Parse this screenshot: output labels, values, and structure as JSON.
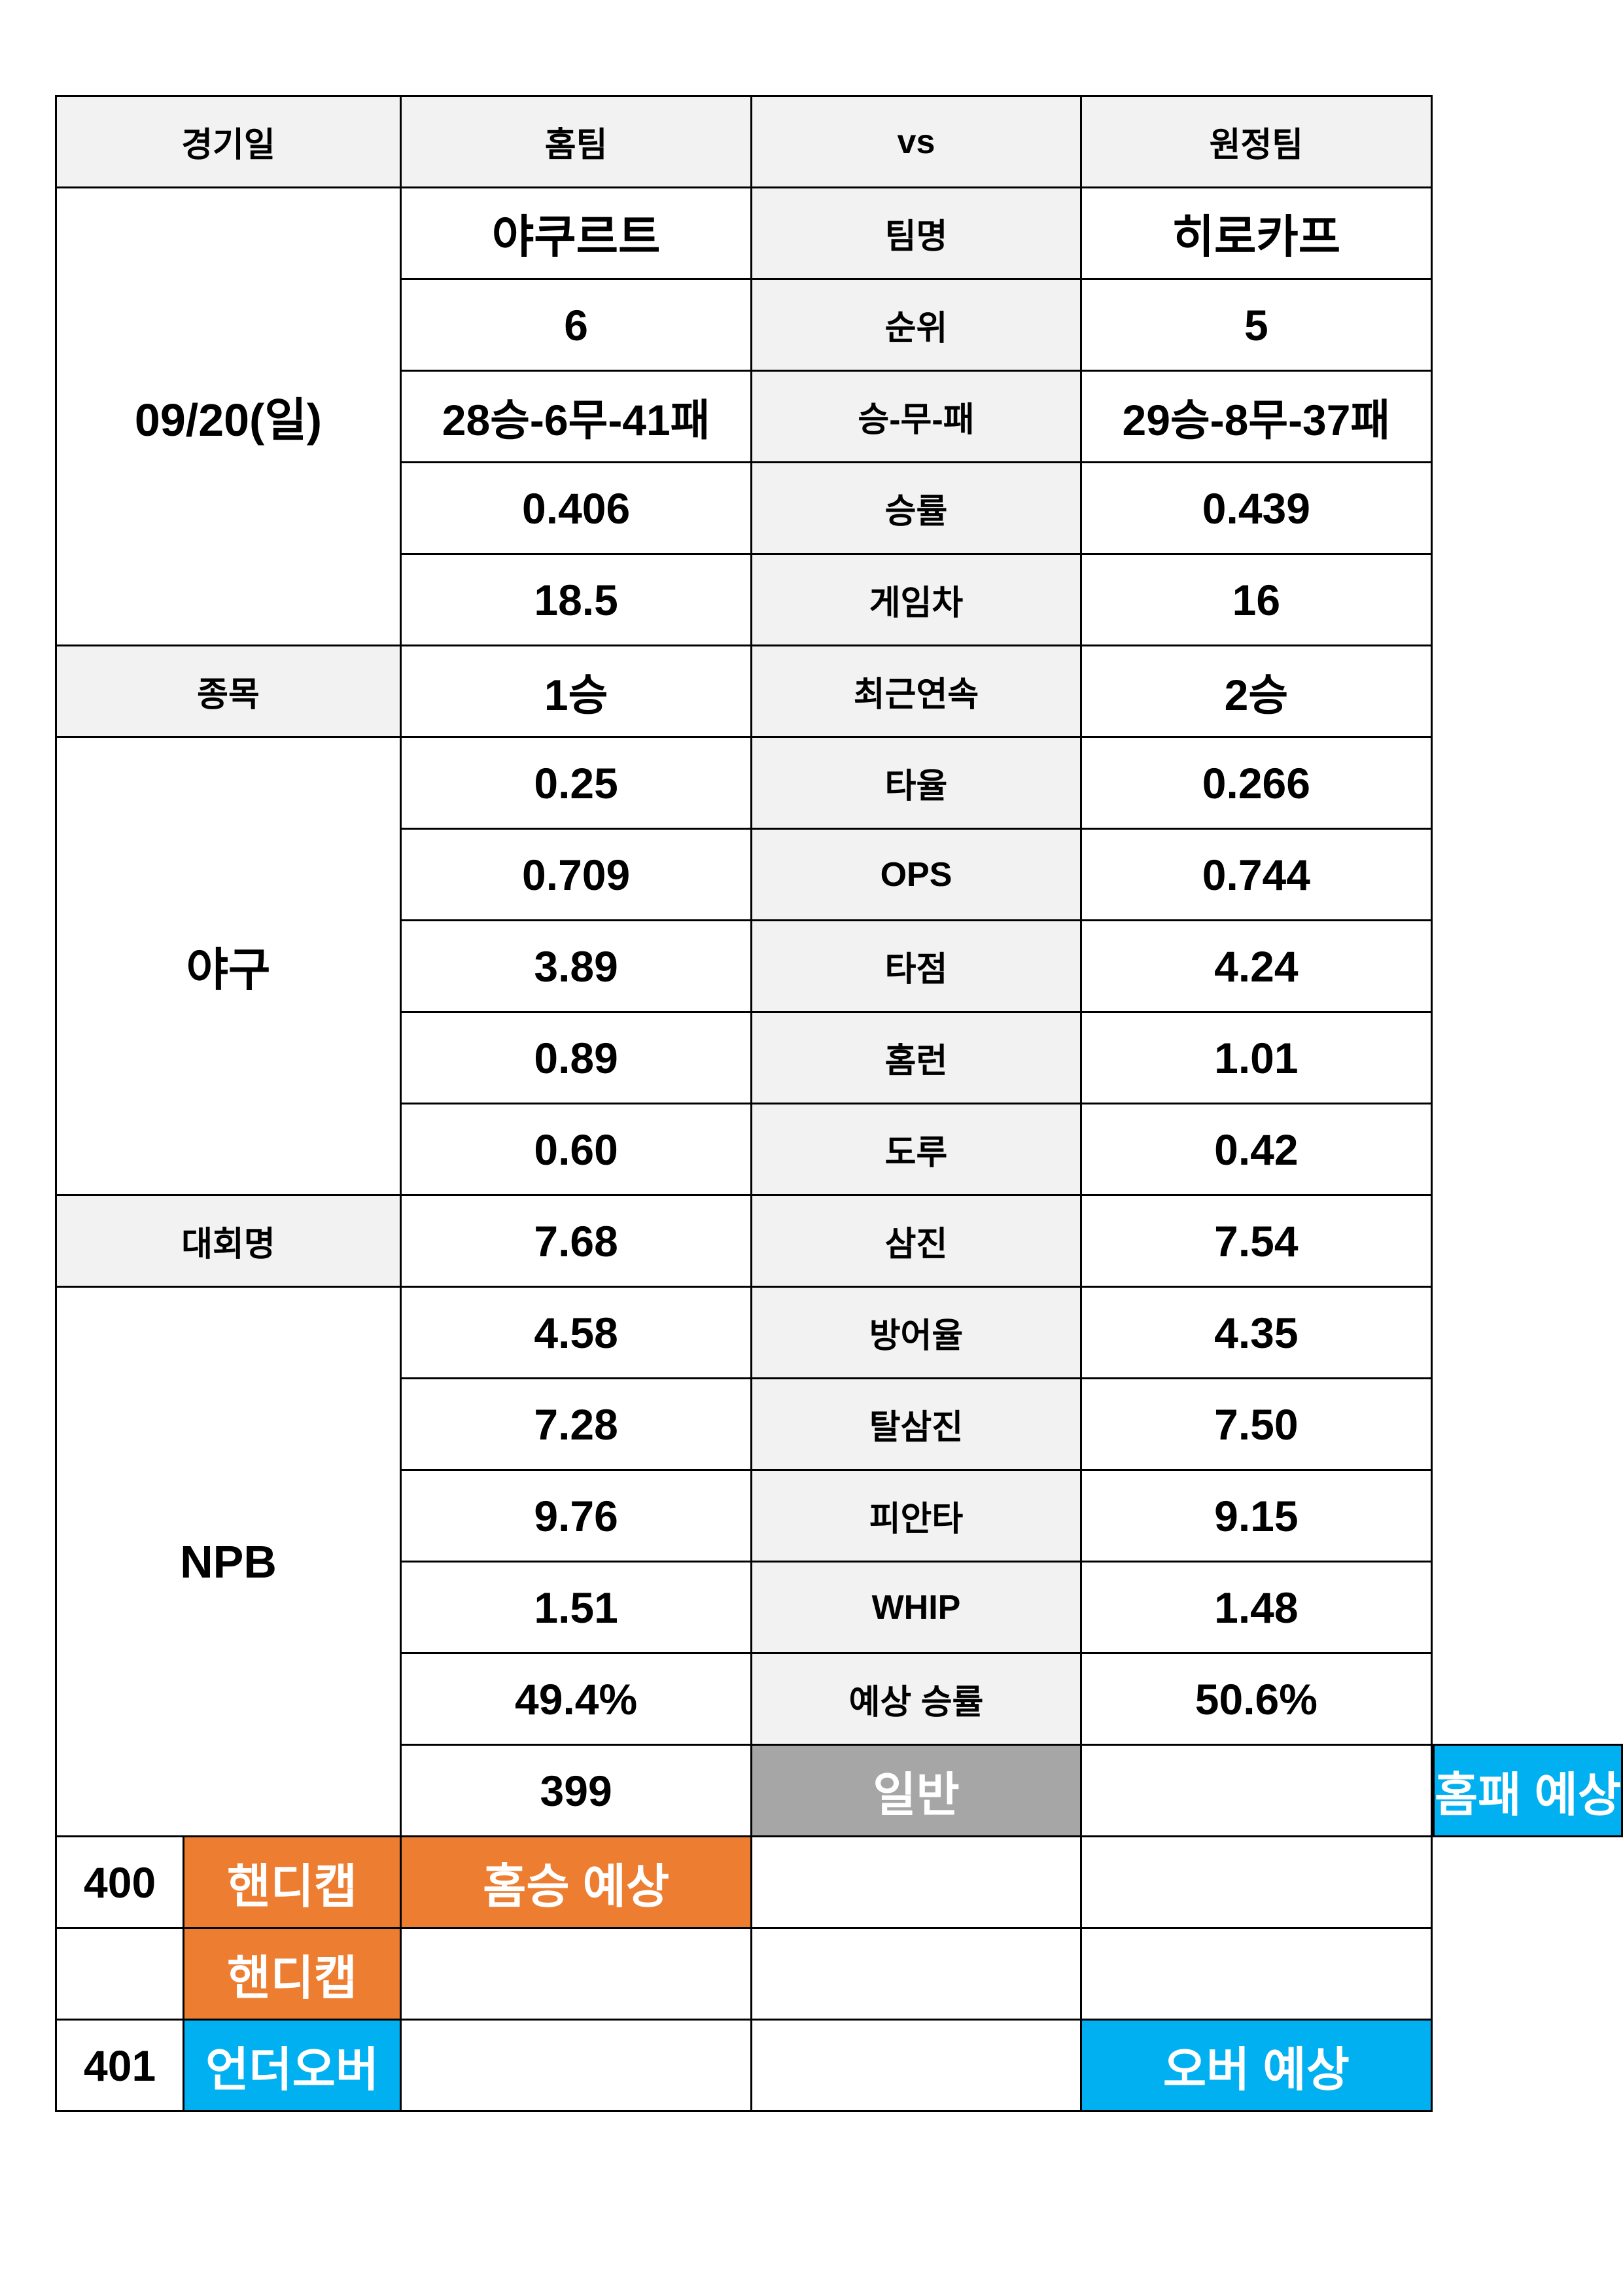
{
  "header": {
    "date_label": "경기일",
    "home_label": "홈팀",
    "vs_label": "vs",
    "away_label": "원정팀"
  },
  "left": {
    "date": "09/20(일)",
    "sport_label": "종목",
    "sport": "야구",
    "league_label": "대회명",
    "league": "NPB"
  },
  "stats": [
    {
      "label": "팀명",
      "home": "야쿠르트",
      "away": "히로카프"
    },
    {
      "label": "순위",
      "home": "6",
      "away": "5"
    },
    {
      "label": "승-무-패",
      "home": "28승-6무-41패",
      "away": "29승-8무-37패"
    },
    {
      "label": "승률",
      "home": "0.406",
      "away": "0.439"
    },
    {
      "label": "게임차",
      "home": "18.5",
      "away": "16"
    },
    {
      "label": "최근연속",
      "home": "1승",
      "away": "2승"
    },
    {
      "label": "타율",
      "home": "0.25",
      "away": "0.266"
    },
    {
      "label": "OPS",
      "home": "0.709",
      "away": "0.744"
    },
    {
      "label": "타점",
      "home": "3.89",
      "away": "4.24"
    },
    {
      "label": "홈런",
      "home": "0.89",
      "away": "1.01"
    },
    {
      "label": "도루",
      "home": "0.60",
      "away": "0.42"
    },
    {
      "label": "삼진",
      "home": "7.68",
      "away": "7.54"
    },
    {
      "label": "방어율",
      "home": "4.58",
      "away": "4.35"
    },
    {
      "label": "탈삼진",
      "home": "7.28",
      "away": "7.50"
    },
    {
      "label": "피안타",
      "home": "9.76",
      "away": "9.15"
    },
    {
      "label": "WHIP",
      "home": "1.51",
      "away": "1.48"
    },
    {
      "label": "예상 승률",
      "home": "49.4%",
      "away": "50.6%"
    }
  ],
  "bets": [
    {
      "number": "399",
      "type": "일반",
      "home_pick": "",
      "away_pick": "홈패 예상"
    },
    {
      "number": "400",
      "type": "핸디캡",
      "home_pick": "홈승 예상",
      "away_pick": ""
    },
    {
      "number": "",
      "type": "핸디캡",
      "home_pick": "",
      "away_pick": ""
    },
    {
      "number": "401",
      "type": "언더오버",
      "home_pick": "",
      "away_pick": "오버 예상"
    }
  ],
  "colors": {
    "label_bg": "#f2f2f2",
    "general": "#a6a6a6",
    "handicap": "#ed7d31",
    "underover": "#00b0f0"
  }
}
